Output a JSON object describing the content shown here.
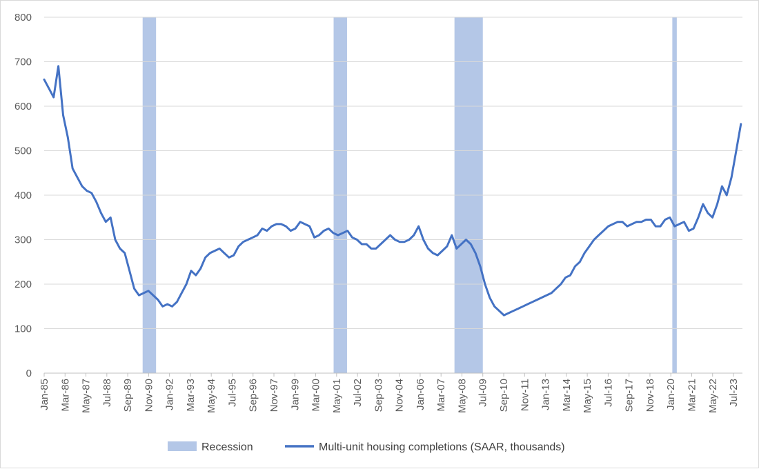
{
  "chart_data": {
    "type": "line",
    "title": "",
    "xlabel": "",
    "ylabel": "",
    "ylim": [
      0,
      800
    ],
    "y_ticks": [
      "0",
      "100",
      "200",
      "300",
      "400",
      "500",
      "600",
      "700",
      "800"
    ],
    "x_range": [
      "1985-01",
      "2023-12"
    ],
    "x_tick_labels": [
      "Jan-85",
      "Mar-86",
      "May-87",
      "Jul-88",
      "Sep-89",
      "Nov-90",
      "Jan-92",
      "Mar-93",
      "May-94",
      "Jul-95",
      "Sep-96",
      "Nov-97",
      "Jan-99",
      "Mar-00",
      "May-01",
      "Jul-02",
      "Sep-03",
      "Nov-04",
      "Jan-06",
      "Mar-07",
      "May-08",
      "Jul-09",
      "Sep-10",
      "Nov-11",
      "Jan-13",
      "Mar-14",
      "May-15",
      "Jul-16",
      "Sep-17",
      "Nov-18",
      "Jan-20",
      "Mar-21",
      "May-22",
      "Jul-23"
    ],
    "gridlines": true,
    "legend": {
      "position": "bottom",
      "recession_label": "Recession",
      "series_label": "Multi-unit housing completions (SAAR, thousands)"
    },
    "recessions": [
      {
        "start": "1990-07",
        "end": "1991-03"
      },
      {
        "start": "2001-03",
        "end": "2001-11"
      },
      {
        "start": "2007-12",
        "end": "2009-06"
      },
      {
        "start": "2020-02",
        "end": "2020-04"
      }
    ],
    "colors": {
      "line": "#4472c4",
      "recession": "#b4c7e7",
      "grid": "#d9d9d9",
      "axis": "#bfbfbf"
    },
    "series": [
      {
        "name": "Multi-unit housing completions (SAAR, thousands)",
        "frequency": "quarterly (approx., read from monthly chart)",
        "start": "1985-01",
        "values": [
          660,
          640,
          620,
          690,
          580,
          530,
          460,
          440,
          420,
          410,
          405,
          385,
          360,
          340,
          350,
          300,
          280,
          270,
          230,
          190,
          175,
          180,
          185,
          175,
          165,
          150,
          155,
          150,
          160,
          180,
          200,
          230,
          220,
          235,
          260,
          270,
          275,
          280,
          270,
          260,
          265,
          285,
          295,
          300,
          305,
          310,
          325,
          320,
          330,
          335,
          335,
          330,
          320,
          325,
          340,
          335,
          330,
          305,
          310,
          320,
          325,
          315,
          310,
          315,
          320,
          305,
          300,
          290,
          290,
          280,
          280,
          290,
          300,
          310,
          300,
          295,
          295,
          300,
          310,
          330,
          300,
          280,
          270,
          265,
          275,
          285,
          310,
          280,
          290,
          300,
          290,
          270,
          240,
          200,
          170,
          150,
          140,
          130,
          135,
          140,
          145,
          150,
          155,
          160,
          165,
          170,
          175,
          180,
          190,
          200,
          215,
          220,
          240,
          250,
          270,
          285,
          300,
          310,
          320,
          330,
          335,
          340,
          340,
          330,
          335,
          340,
          340,
          345,
          345,
          330,
          330,
          345,
          350,
          330,
          335,
          340,
          320,
          325,
          350,
          380,
          360,
          350,
          380,
          420,
          400,
          440,
          500,
          560
        ]
      }
    ]
  }
}
